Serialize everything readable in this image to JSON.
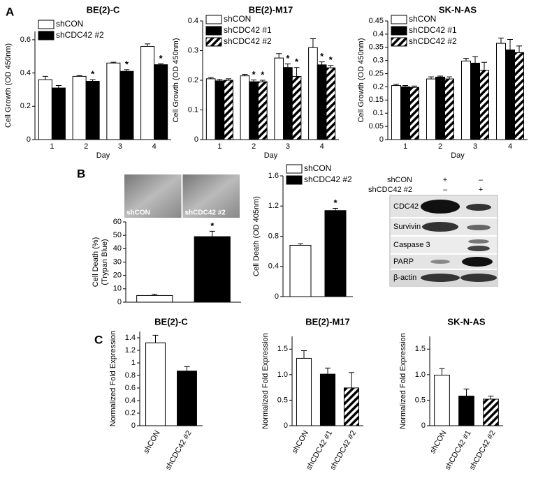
{
  "panel_labels": [
    "A",
    "B",
    "C"
  ],
  "chart_data": [
    {
      "type": "bar",
      "title": "BE(2)-C",
      "ylabel": [
        "Cell Growth (OD 450nm)"
      ],
      "xlabel": "Day",
      "categories": [
        "1",
        "2",
        "3",
        "4"
      ],
      "series": [
        {
          "name": "shCON",
          "color": "#ffffff",
          "values": [
            0.36,
            0.38,
            0.46,
            0.56
          ],
          "errors": [
            0.02,
            0.005,
            0.005,
            0.015
          ]
        },
        {
          "name": "shCDC42 #2",
          "color": "#000000",
          "values": [
            0.31,
            0.35,
            0.41,
            0.45
          ],
          "errors": [
            0.015,
            0.01,
            0.01,
            0.005
          ],
          "marks": [
            null,
            "*",
            "*",
            "*"
          ]
        }
      ],
      "ylim": [
        0,
        0.65
      ],
      "yticks": [
        0,
        0.2,
        0.4,
        0.6
      ],
      "legend": "upper left"
    },
    {
      "type": "bar",
      "title": "BE(2)-M17",
      "ylabel": [
        "Cell Growth (OD 450nm)"
      ],
      "xlabel": "Day",
      "categories": [
        "1",
        "2",
        "3",
        "4"
      ],
      "series": [
        {
          "name": "shCON",
          "color": "#ffffff",
          "values": [
            0.205,
            0.215,
            0.275,
            0.31
          ],
          "errors": [
            0.004,
            0.005,
            0.015,
            0.03
          ]
        },
        {
          "name": "shCDC42 #1",
          "color": "#000000",
          "values": [
            0.198,
            0.195,
            0.243,
            0.252
          ],
          "errors": [
            0.005,
            0.006,
            0.012,
            0.01
          ],
          "marks": [
            null,
            "*",
            "*",
            "*"
          ]
        },
        {
          "name": "shCDC42 #2",
          "color": "#ffffff",
          "hatch": true,
          "values": [
            0.2,
            0.195,
            0.213,
            0.242
          ],
          "errors": [
            0.005,
            0.005,
            0.03,
            0.008
          ],
          "marks": [
            null,
            "*",
            "*",
            "*"
          ]
        }
      ],
      "ylim": [
        0,
        0.4
      ],
      "yticks": [
        0,
        0.1,
        0.2,
        0.3,
        0.4
      ],
      "legend": "upper left"
    },
    {
      "type": "bar",
      "title": "SK-N-AS",
      "ylabel": [
        "Cell Growth (OD 450nm)"
      ],
      "xlabel": "Day",
      "categories": [
        "1",
        "2",
        "3",
        "4"
      ],
      "series": [
        {
          "name": "shCON",
          "color": "#ffffff",
          "values": [
            0.205,
            0.23,
            0.298,
            0.365
          ],
          "errors": [
            0.005,
            0.008,
            0.01,
            0.02
          ]
        },
        {
          "name": "shCDC42 #1",
          "color": "#000000",
          "values": [
            0.2,
            0.237,
            0.29,
            0.34
          ],
          "errors": [
            0.005,
            0.004,
            0.025,
            0.04
          ]
        },
        {
          "name": "shCDC42 #2",
          "color": "#ffffff",
          "hatch": true,
          "values": [
            0.198,
            0.23,
            0.263,
            0.33
          ],
          "errors": [
            0.005,
            0.008,
            0.03,
            0.025
          ]
        }
      ],
      "ylim": [
        0,
        0.45
      ],
      "yticks": [
        0,
        0.05,
        0.1,
        0.15,
        0.2,
        0.25,
        0.3,
        0.35,
        0.4,
        0.45
      ],
      "legend": "upper left"
    },
    {
      "type": "bar",
      "ylabel": [
        "Cell Death (%)",
        "(Trypan Blue)"
      ],
      "images": [
        "shCON",
        "shCDC42 #2"
      ],
      "categories": [
        null,
        null
      ],
      "values": [
        5,
        49
      ],
      "errors": [
        1,
        4
      ],
      "colors": [
        "#ffffff",
        "#000000"
      ],
      "marks": [
        null,
        "*"
      ],
      "ylim": [
        0,
        60
      ],
      "yticks": [
        0,
        10,
        20,
        30,
        40,
        50,
        60
      ]
    },
    {
      "type": "bar",
      "ylabel": [
        "Cell Death (OD 405nm)"
      ],
      "categories": [
        null
      ],
      "series": [
        {
          "name": "shCON",
          "color": "#ffffff",
          "values": [
            0.68
          ],
          "errors": [
            0.02
          ]
        },
        {
          "name": "shCDC42 #2",
          "color": "#000000",
          "values": [
            1.14
          ],
          "errors": [
            0.03
          ],
          "marks": [
            "*"
          ]
        }
      ],
      "ylim": [
        0,
        1.6
      ],
      "yticks": [
        0,
        0.4,
        0.8,
        1.2,
        1.6
      ],
      "legend": "upper left"
    },
    {
      "type": "bar",
      "title": "BE(2)-C",
      "ylabel": [
        "Normalized Fold Expression"
      ],
      "categories": [
        "shCON",
        "shCDC42 #2"
      ],
      "values": [
        1.32,
        0.87
      ],
      "errors": [
        0.12,
        0.07
      ],
      "colors": [
        "#ffffff",
        "#000000"
      ],
      "ylim": [
        0,
        1.5
      ],
      "yticks": [
        0,
        0.2,
        0.4,
        0.6,
        0.8,
        1,
        1.2,
        1.4
      ]
    },
    {
      "type": "bar",
      "title": "BE(2)-M17",
      "ylabel": [
        "Normalized Fold Expression"
      ],
      "categories": [
        "shCON",
        "shCDC42 #1",
        "shCDC42 #2"
      ],
      "values": [
        1.32,
        1.01,
        0.74
      ],
      "errors": [
        0.15,
        0.12,
        0.3
      ],
      "colors": [
        "#ffffff",
        "#000000",
        "#ffffff"
      ],
      "hatch": [
        false,
        false,
        true
      ],
      "ylim": [
        0,
        1.75
      ],
      "yticks": [
        0,
        {
          "value": 0.5,
          "label": "0.5"
        },
        {
          "value": 1,
          "label": "1.0"
        },
        {
          "value": 1.5,
          "label": "1.5"
        }
      ]
    },
    {
      "type": "bar",
      "title": "SK-N-AS",
      "ylabel": [
        "Normalized Fold Expression"
      ],
      "categories": [
        "shCON",
        "shCDC42 #1",
        "shCDC42 #2"
      ],
      "values": [
        0.99,
        0.58,
        0.52
      ],
      "errors": [
        0.13,
        0.14,
        0.06
      ],
      "colors": [
        "#ffffff",
        "#000000",
        "#ffffff"
      ],
      "hatch": [
        false,
        false,
        true
      ],
      "ylim": [
        0,
        1.75
      ],
      "yticks": [
        0,
        {
          "value": 0.5,
          "label": "0.5"
        },
        {
          "value": 1,
          "label": "1.0"
        },
        {
          "value": 1.5,
          "label": "1.5"
        }
      ]
    }
  ],
  "blot": {
    "lane_headers": [
      {
        "name": "shCON",
        "lanes": [
          "+",
          "–"
        ]
      },
      {
        "name": "shCDC42 #2",
        "lanes": [
          "–",
          "+"
        ]
      }
    ],
    "rows": [
      "CDC42",
      "Survivin",
      "Caspase 3",
      "PARP",
      "β-actin"
    ]
  }
}
